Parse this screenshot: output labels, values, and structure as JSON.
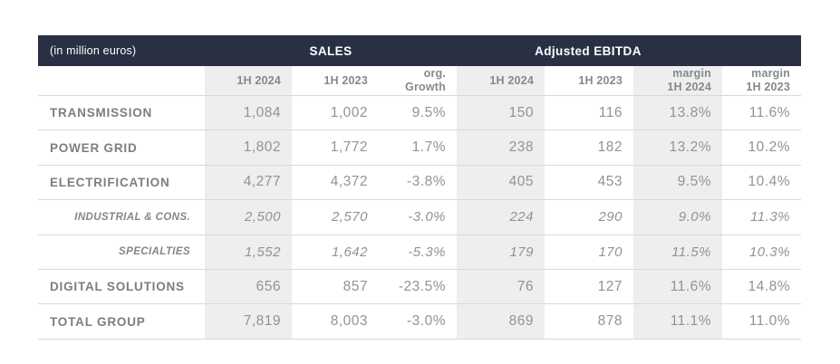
{
  "table": {
    "unit_label": "(in million euros)",
    "group_headers": {
      "sales": "SALES",
      "ebitda": "Adjusted EBITDA"
    },
    "column_headers": [
      "1H 2024",
      "1H 2023",
      "org.\nGrowth",
      "1H 2024",
      "1H 2023",
      "margin\n1H 2024",
      "margin\n1H 2023"
    ],
    "rows": [
      {
        "label": "TRANSMISSION",
        "style": "main",
        "values": [
          "1,084",
          "1,002",
          "9.5%",
          "150",
          "116",
          "13.8%",
          "11.6%"
        ]
      },
      {
        "label": "POWER GRID",
        "style": "main",
        "values": [
          "1,802",
          "1,772",
          "1.7%",
          "238",
          "182",
          "13.2%",
          "10.2%"
        ]
      },
      {
        "label": "ELECTRIFICATION",
        "style": "main",
        "values": [
          "4,277",
          "4,372",
          "-3.8%",
          "405",
          "453",
          "9.5%",
          "10.4%"
        ]
      },
      {
        "label": "INDUSTRIAL & CONS.",
        "style": "sub",
        "values": [
          "2,500",
          "2,570",
          "-3.0%",
          "224",
          "290",
          "9.0%",
          "11.3%"
        ]
      },
      {
        "label": "SPECIALTIES",
        "style": "sub",
        "values": [
          "1,552",
          "1,642",
          "-5.3%",
          "179",
          "170",
          "11.5%",
          "10.3%"
        ]
      },
      {
        "label": "DIGITAL SOLUTIONS",
        "style": "main",
        "values": [
          "656",
          "857",
          "-23.5%",
          "76",
          "127",
          "11.6%",
          "14.8%"
        ]
      },
      {
        "label": "TOTAL GROUP",
        "style": "main",
        "values": [
          "7,819",
          "8,003",
          "-3.0%",
          "869",
          "878",
          "11.1%",
          "11.0%"
        ]
      }
    ],
    "colors": {
      "header_bg": "#293044",
      "header_text": "#ffffff",
      "shaded_column_bg": "#eeeeee",
      "divider": "#d9d9d9",
      "label_text": "#7a7e84",
      "value_text": "#8f9399",
      "subheader_text": "#85898f"
    }
  },
  "chart_data": {
    "type": "table",
    "title": "Half-year results by segment",
    "unit": "million euros",
    "column_groups": [
      {
        "name": "SALES",
        "columns": [
          "1H 2024",
          "1H 2023",
          "org. Growth"
        ]
      },
      {
        "name": "Adjusted EBITDA",
        "columns": [
          "1H 2024",
          "1H 2023",
          "margin 1H 2024",
          "margin 1H 2023"
        ]
      }
    ],
    "rows": [
      {
        "label": "TRANSMISSION",
        "sales_1h2024": 1084,
        "sales_1h2023": 1002,
        "org_growth_pct": 9.5,
        "ebitda_1h2024": 150,
        "ebitda_1h2023": 116,
        "margin_1h2024_pct": 13.8,
        "margin_1h2023_pct": 11.6
      },
      {
        "label": "POWER GRID",
        "sales_1h2024": 1802,
        "sales_1h2023": 1772,
        "org_growth_pct": 1.7,
        "ebitda_1h2024": 238,
        "ebitda_1h2023": 182,
        "margin_1h2024_pct": 13.2,
        "margin_1h2023_pct": 10.2
      },
      {
        "label": "ELECTRIFICATION",
        "sales_1h2024": 4277,
        "sales_1h2023": 4372,
        "org_growth_pct": -3.8,
        "ebitda_1h2024": 405,
        "ebitda_1h2023": 453,
        "margin_1h2024_pct": 9.5,
        "margin_1h2023_pct": 10.4
      },
      {
        "label": "INDUSTRIAL & CONS.",
        "sales_1h2024": 2500,
        "sales_1h2023": 2570,
        "org_growth_pct": -3.0,
        "ebitda_1h2024": 224,
        "ebitda_1h2023": 290,
        "margin_1h2024_pct": 9.0,
        "margin_1h2023_pct": 11.3
      },
      {
        "label": "SPECIALTIES",
        "sales_1h2024": 1552,
        "sales_1h2023": 1642,
        "org_growth_pct": -5.3,
        "ebitda_1h2024": 179,
        "ebitda_1h2023": 170,
        "margin_1h2024_pct": 11.5,
        "margin_1h2023_pct": 10.3
      },
      {
        "label": "DIGITAL SOLUTIONS",
        "sales_1h2024": 656,
        "sales_1h2023": 857,
        "org_growth_pct": -23.5,
        "ebitda_1h2024": 76,
        "ebitda_1h2023": 127,
        "margin_1h2024_pct": 11.6,
        "margin_1h2023_pct": 14.8
      },
      {
        "label": "TOTAL GROUP",
        "sales_1h2024": 7819,
        "sales_1h2023": 8003,
        "org_growth_pct": -3.0,
        "ebitda_1h2024": 869,
        "ebitda_1h2023": 878,
        "margin_1h2024_pct": 11.1,
        "margin_1h2023_pct": 11.0
      }
    ]
  }
}
